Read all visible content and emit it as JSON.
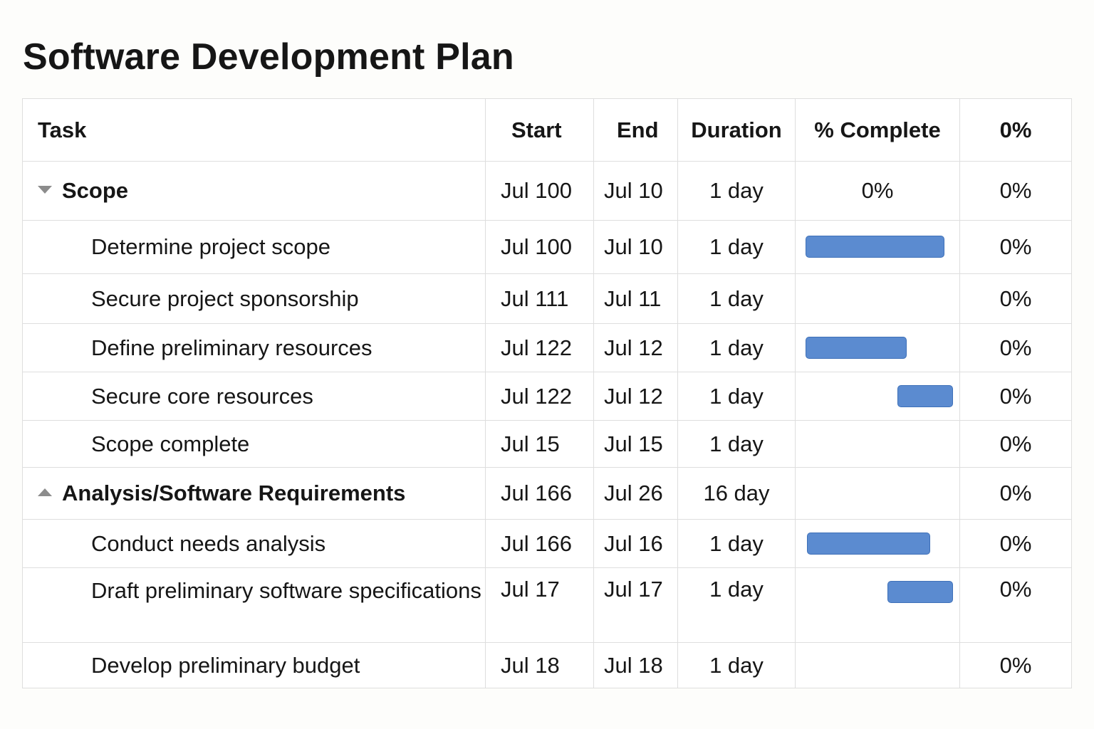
{
  "page": {
    "title": "Software Development Plan"
  },
  "table": {
    "headers": {
      "task": "Task",
      "start": "Start",
      "end": "End",
      "duration": "Duration",
      "pct_complete": "% Complete",
      "last": "0%"
    },
    "rows": [
      {
        "task": "Scope",
        "group": true,
        "caret": "down",
        "start": "Jul 100",
        "end": "Jul 10",
        "duration": "1 day",
        "pct_text": "0%",
        "bar": null,
        "last": "0%"
      },
      {
        "task": "Determine project scope",
        "group": false,
        "start": "Jul 100",
        "end": "Jul 10",
        "duration": "1 day",
        "pct_text": "",
        "bar": {
          "from": 0.06,
          "to": 0.91
        },
        "last": "0%"
      },
      {
        "task": "Secure project sponsorship",
        "group": false,
        "start": "Jul 111",
        "end": "Jul 11",
        "duration": "1 day",
        "pct_text": "",
        "bar": null,
        "last": "0%"
      },
      {
        "task": "Define preliminary resources",
        "group": false,
        "start": "Jul 122",
        "end": "Jul 12",
        "duration": "1 day",
        "pct_text": "",
        "bar": {
          "from": 0.06,
          "to": 0.68
        },
        "last": "0%"
      },
      {
        "task": "Secure core resources",
        "group": false,
        "start": "Jul 122",
        "end": "Jul 12",
        "duration": "1 day",
        "pct_text": "",
        "bar": {
          "from": 0.62,
          "to": 0.96
        },
        "last": "0%"
      },
      {
        "task": "Scope complete",
        "group": false,
        "start": "Jul 15",
        "end": "Jul 15",
        "duration": "1 day",
        "pct_text": "",
        "bar": null,
        "last": "0%"
      },
      {
        "task": "Analysis/Software Requirements",
        "group": true,
        "caret": "up",
        "start": "Jul 166",
        "end": "Jul 26",
        "duration": "16 day",
        "pct_text": "",
        "bar": null,
        "last": "0%"
      },
      {
        "task": "Conduct needs analysis",
        "group": false,
        "start": "Jul 166",
        "end": "Jul 16",
        "duration": "1 day",
        "pct_text": "",
        "bar": {
          "from": 0.07,
          "to": 0.82
        },
        "last": "0%"
      },
      {
        "task": "Draft preliminary software specifications",
        "group": false,
        "tall": true,
        "start": "Jul 17",
        "end": "Jul 17",
        "duration": "1 day",
        "pct_text": "",
        "bar": {
          "from": 0.56,
          "to": 0.96
        },
        "last": "0%"
      },
      {
        "task": "Develop preliminary budget",
        "group": false,
        "start": "Jul 18",
        "end": "Jul 18",
        "duration": "1 day",
        "pct_text": "",
        "bar": null,
        "last": "0%"
      }
    ]
  },
  "colors": {
    "bar_fill": "#5b8bd0",
    "bar_border": "#3e70b8",
    "grid": "#dedede",
    "text": "#161616"
  },
  "icons": {
    "expanded": "caret-down-icon",
    "collapsed": "caret-up-icon"
  }
}
